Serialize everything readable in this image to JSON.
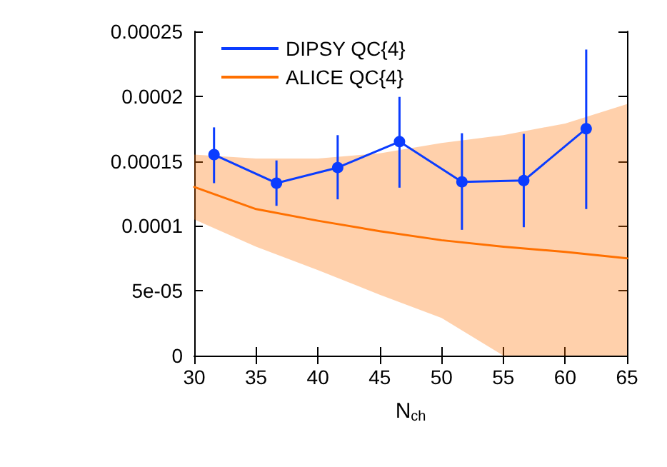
{
  "chart_data": {
    "type": "line",
    "xlabel": "N$_{ch}$",
    "xlim": [
      30,
      65
    ],
    "xticks": [
      30,
      35,
      40,
      45,
      50,
      55,
      60,
      65
    ],
    "ylim": [
      0,
      0.00025
    ],
    "yticks": [
      0,
      {
        "value": 5e-05,
        "label": "5e-05"
      },
      0.0001,
      0.00015,
      0.0002,
      0.00025
    ],
    "grid": false,
    "legend": "top left",
    "line_style": "solid",
    "series": [
      {
        "name": "DIPSY QC{4}",
        "color": "#0a3cff",
        "marker": "circle",
        "x": [
          31.6,
          36.65,
          41.6,
          46.6,
          51.65,
          56.65,
          61.7
        ],
        "values": [
          0.000155,
          0.000133,
          0.000145,
          0.000165,
          0.000134,
          0.000135,
          0.000175
        ],
        "errors": [
          [
            0.000133,
            0.000176
          ],
          [
            0.0001155,
            0.0001505
          ],
          [
            0.0001205,
            0.00017
          ],
          [
            0.0001295,
            0.0001995
          ],
          [
            9.7e-05,
            0.0001715
          ],
          [
            9.9e-05,
            0.000171
          ],
          [
            0.000113,
            0.000236
          ]
        ]
      },
      {
        "name": "ALICE QC{4}",
        "color": "#ff7000",
        "marker": "none",
        "x": [
          30,
          35,
          40,
          45,
          50,
          55,
          60,
          65
        ],
        "values": [
          0.00013,
          0.000113,
          0.000104,
          9.6e-05,
          8.9e-05,
          8.4e-05,
          8e-05,
          7.5e-05
        ],
        "lower": [
          0.000105,
          8.4e-05,
          6.6e-05,
          4.7e-05,
          2.9e-05,
          0,
          0,
          0
        ],
        "upper": [
          0.000155,
          0.000152,
          0.000152,
          0.000156,
          0.000164,
          0.00017,
          0.000179,
          0.000194
        ]
      }
    ]
  }
}
